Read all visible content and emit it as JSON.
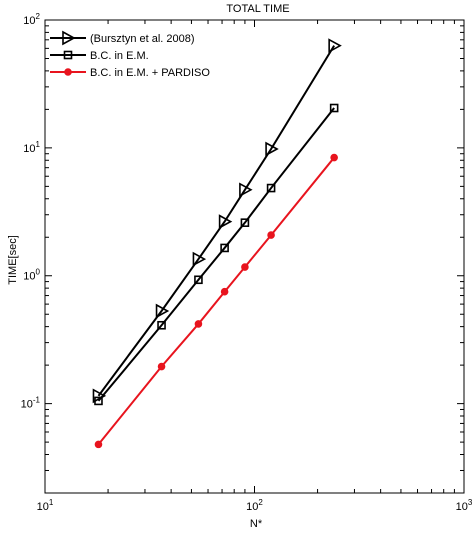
{
  "chart_data": {
    "type": "line",
    "title": "TOTAL TIME",
    "xlabel": "N*",
    "ylabel": "TIME[sec]",
    "xscale": "log",
    "yscale": "log",
    "xlim": [
      10,
      1000
    ],
    "ylim": [
      0.02,
      100
    ],
    "grid": false,
    "legend_position": "top-left",
    "x_ticks": [
      {
        "value": 10,
        "base": "10",
        "exp": "1"
      },
      {
        "value": 100,
        "base": "10",
        "exp": "2"
      },
      {
        "value": 1000,
        "base": "10",
        "exp": "3"
      }
    ],
    "y_ticks": [
      {
        "value": 0.1,
        "base": "10",
        "exp": "-1"
      },
      {
        "value": 1,
        "base": "10",
        "exp": "0"
      },
      {
        "value": 10,
        "base": "10",
        "exp": "1"
      },
      {
        "value": 100,
        "base": "10",
        "exp": "2"
      }
    ],
    "series": [
      {
        "name": "(Bursztyn et al. 2008)",
        "color": "#000000",
        "marker": "triangle-right",
        "x": [
          18,
          36,
          54,
          72,
          90,
          120,
          240
        ],
        "y": [
          0.115,
          0.53,
          1.35,
          2.65,
          4.7,
          9.8,
          63
        ]
      },
      {
        "name": "B.C. in E.M.",
        "color": "#000000",
        "marker": "square",
        "x": [
          18,
          36,
          54,
          72,
          90,
          120,
          240
        ],
        "y": [
          0.105,
          0.41,
          0.93,
          1.65,
          2.6,
          4.85,
          20.5
        ]
      },
      {
        "name": "B.C. in E.M. + PARDISO",
        "color": "#e8141e",
        "marker": "circle",
        "x": [
          18,
          36,
          54,
          72,
          90,
          120,
          240
        ],
        "y": [
          0.048,
          0.195,
          0.42,
          0.75,
          1.17,
          2.08,
          8.4
        ]
      }
    ]
  }
}
